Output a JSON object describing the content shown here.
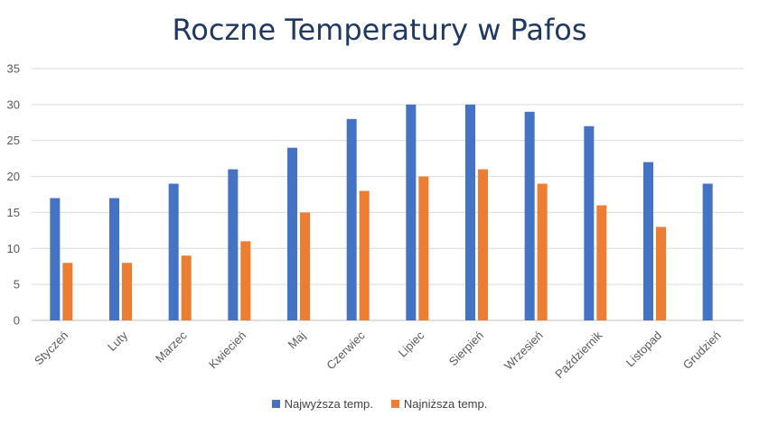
{
  "chart_data": {
    "type": "bar",
    "title": "Roczne Temperatury w Pafos",
    "categories": [
      "Styczeń",
      "Luty",
      "Marzec",
      "Kwiecień",
      "Maj",
      "Czerwiec",
      "Lipiec",
      "Sierpień",
      "Wrzesień",
      "Październik",
      "Listopad",
      "Grudzień"
    ],
    "series": [
      {
        "name": "Najwyższa temp.",
        "color": "#4472c4",
        "values": [
          17,
          17,
          19,
          21,
          24,
          28,
          30,
          30,
          29,
          27,
          22,
          19
        ]
      },
      {
        "name": "Najniższa temp.",
        "color": "#ed7d31",
        "values": [
          8,
          8,
          9,
          11,
          15,
          18,
          20,
          21,
          19,
          16,
          13,
          null
        ]
      }
    ],
    "ylim": [
      0,
      35
    ],
    "yticks": [
      0,
      5,
      10,
      15,
      20,
      25,
      30,
      35
    ],
    "grid": true,
    "legend": "bottom"
  }
}
